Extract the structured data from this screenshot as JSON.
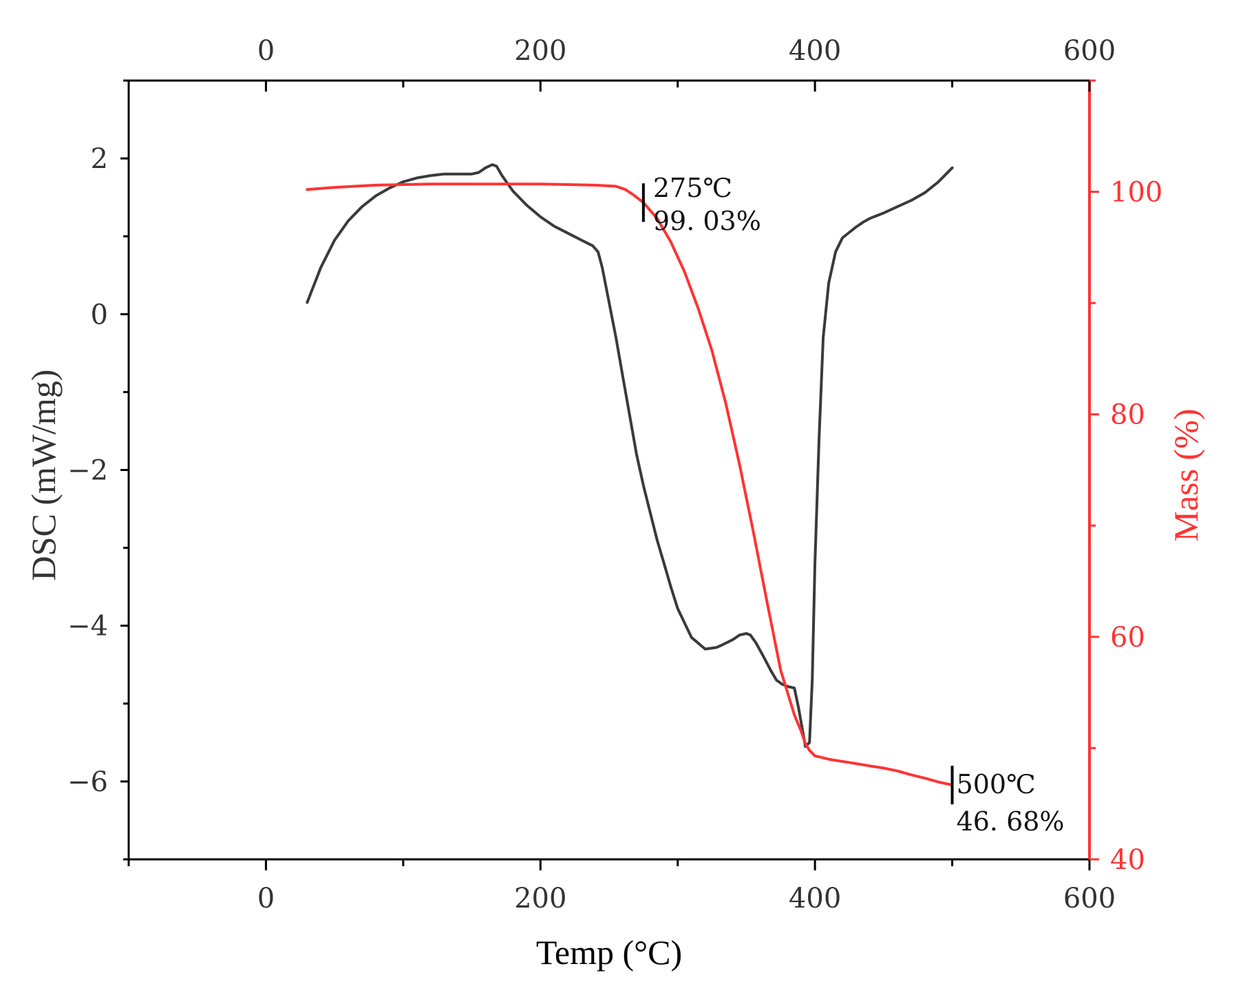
{
  "chart_data": {
    "type": "line",
    "title": "",
    "xlabel": "Temp (°C)",
    "ylabel_left": "DSC (mW/mg)",
    "ylabel_right": "Mass  (%)",
    "xlim": [
      -100,
      600
    ],
    "x_ticks": [
      0,
      200,
      400,
      600
    ],
    "x_ticks_top": [
      0,
      200,
      400,
      600
    ],
    "ylim_left": [
      -7,
      3
    ],
    "y_ticks_left": [
      2,
      0,
      -2,
      -4,
      -6
    ],
    "ylim_right": [
      40,
      110
    ],
    "y_ticks_right": [
      100,
      80,
      60,
      40
    ],
    "colors": {
      "dsc": "#3a3a3c",
      "mass": "#ff3333",
      "axis": "#000000",
      "right_axis": "#ff3333",
      "ticklabel": "#333333"
    },
    "series": [
      {
        "name": "DSC",
        "axis": "left",
        "x": [
          30,
          40,
          50,
          60,
          70,
          80,
          90,
          100,
          110,
          120,
          130,
          140,
          150,
          155,
          160,
          165,
          168,
          172,
          180,
          190,
          200,
          210,
          220,
          230,
          238,
          242,
          245,
          250,
          255,
          260,
          265,
          270,
          275,
          280,
          285,
          290,
          295,
          300,
          310,
          320,
          328,
          332,
          340,
          345,
          350,
          353,
          357,
          362,
          368,
          372,
          376,
          380,
          385,
          388,
          391,
          393,
          396,
          398,
          400,
          403,
          406,
          410,
          415,
          420,
          425,
          430,
          435,
          440,
          450,
          460,
          470,
          480,
          490,
          500
        ],
        "y": [
          0.15,
          0.6,
          0.95,
          1.2,
          1.38,
          1.52,
          1.62,
          1.7,
          1.75,
          1.78,
          1.8,
          1.8,
          1.8,
          1.82,
          1.88,
          1.92,
          1.9,
          1.78,
          1.58,
          1.4,
          1.25,
          1.13,
          1.04,
          0.95,
          0.88,
          0.8,
          0.6,
          0.15,
          -0.3,
          -0.8,
          -1.3,
          -1.8,
          -2.2,
          -2.55,
          -2.9,
          -3.2,
          -3.5,
          -3.78,
          -4.15,
          -4.3,
          -4.28,
          -4.25,
          -4.18,
          -4.12,
          -4.1,
          -4.12,
          -4.22,
          -4.38,
          -4.58,
          -4.7,
          -4.75,
          -4.78,
          -4.8,
          -5.05,
          -5.35,
          -5.55,
          -5.5,
          -4.7,
          -3.2,
          -1.6,
          -0.3,
          0.4,
          0.8,
          0.98,
          1.05,
          1.12,
          1.18,
          1.23,
          1.3,
          1.38,
          1.46,
          1.56,
          1.7,
          1.88
        ]
      },
      {
        "name": "Mass",
        "axis": "right",
        "x": [
          30,
          50,
          80,
          120,
          160,
          200,
          240,
          255,
          262,
          268,
          275,
          285,
          295,
          305,
          315,
          325,
          335,
          345,
          355,
          365,
          375,
          385,
          390,
          393,
          396,
          400,
          410,
          420,
          430,
          440,
          450,
          460,
          470,
          480,
          490,
          500
        ],
        "y": [
          100.2,
          100.4,
          100.6,
          100.7,
          100.7,
          100.7,
          100.6,
          100.5,
          100.2,
          99.7,
          99.03,
          97.6,
          95.5,
          92.8,
          89.5,
          85.7,
          81.0,
          75.5,
          69.5,
          63.2,
          57.0,
          53.0,
          51.5,
          50.4,
          49.8,
          49.3,
          49.0,
          48.8,
          48.6,
          48.4,
          48.2,
          47.95,
          47.6,
          47.3,
          46.95,
          46.68
        ]
      }
    ],
    "annotations": [
      {
        "id": "onset",
        "x": 275,
        "mass": 99.03,
        "temp_label": "275℃",
        "value_label": "99. 03%"
      },
      {
        "id": "final",
        "x": 500,
        "mass": 46.68,
        "temp_label": "500℃",
        "value_label": "46. 68%"
      }
    ]
  }
}
